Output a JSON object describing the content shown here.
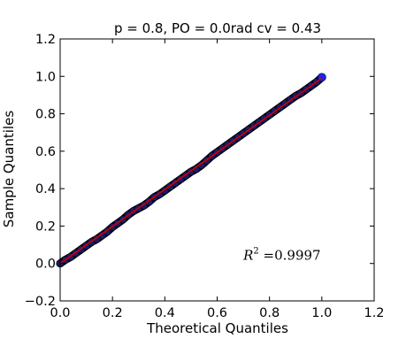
{
  "chart_data": {
    "type": "scatter",
    "title": "p = 0.8, PO = 0.0rad cv = 0.43",
    "xlabel": "Theoretical Quantiles",
    "ylabel": "Sample Quantiles",
    "xlim": [
      0.0,
      1.2
    ],
    "ylim": [
      -0.2,
      1.2
    ],
    "xticks": [
      "0.0",
      "0.2",
      "0.4",
      "0.6",
      "0.8",
      "1.0",
      "1.2"
    ],
    "yticks": [
      "−0.2",
      "0.0",
      "0.2",
      "0.4",
      "0.6",
      "0.8",
      "1.0",
      "1.2"
    ],
    "grid": false,
    "legend": "none",
    "annotation": {
      "prefix": "R",
      "sup": "2",
      "text": " =0.9997",
      "x": 0.7,
      "y": 0.02
    },
    "fit_line": {
      "x": [
        0.0,
        1.0
      ],
      "y": [
        0.0,
        0.99
      ],
      "color": "#cc0000"
    },
    "point_color": "#1a1a66",
    "last_point_color": "#2222ee",
    "series": [
      {
        "x": [
          0.0,
          0.02,
          0.04,
          0.06,
          0.08,
          0.1,
          0.12,
          0.14,
          0.16,
          0.18,
          0.2,
          0.22,
          0.24,
          0.26,
          0.28,
          0.3,
          0.32,
          0.34,
          0.36,
          0.38,
          0.4,
          0.42,
          0.44,
          0.46,
          0.48,
          0.5,
          0.52,
          0.54,
          0.56,
          0.58,
          0.6,
          0.62,
          0.64,
          0.66,
          0.68,
          0.7,
          0.72,
          0.74,
          0.76,
          0.78,
          0.8,
          0.82,
          0.84,
          0.86,
          0.88,
          0.9,
          0.92,
          0.94,
          0.96,
          0.98,
          1.0
        ],
        "y": [
          0.0,
          0.02,
          0.035,
          0.055,
          0.075,
          0.095,
          0.115,
          0.13,
          0.15,
          0.17,
          0.195,
          0.215,
          0.235,
          0.26,
          0.28,
          0.295,
          0.31,
          0.33,
          0.355,
          0.37,
          0.39,
          0.41,
          0.43,
          0.45,
          0.47,
          0.49,
          0.505,
          0.525,
          0.55,
          0.575,
          0.595,
          0.615,
          0.635,
          0.655,
          0.675,
          0.695,
          0.715,
          0.735,
          0.755,
          0.775,
          0.795,
          0.815,
          0.835,
          0.855,
          0.875,
          0.895,
          0.91,
          0.93,
          0.95,
          0.97,
          0.995
        ]
      }
    ]
  }
}
